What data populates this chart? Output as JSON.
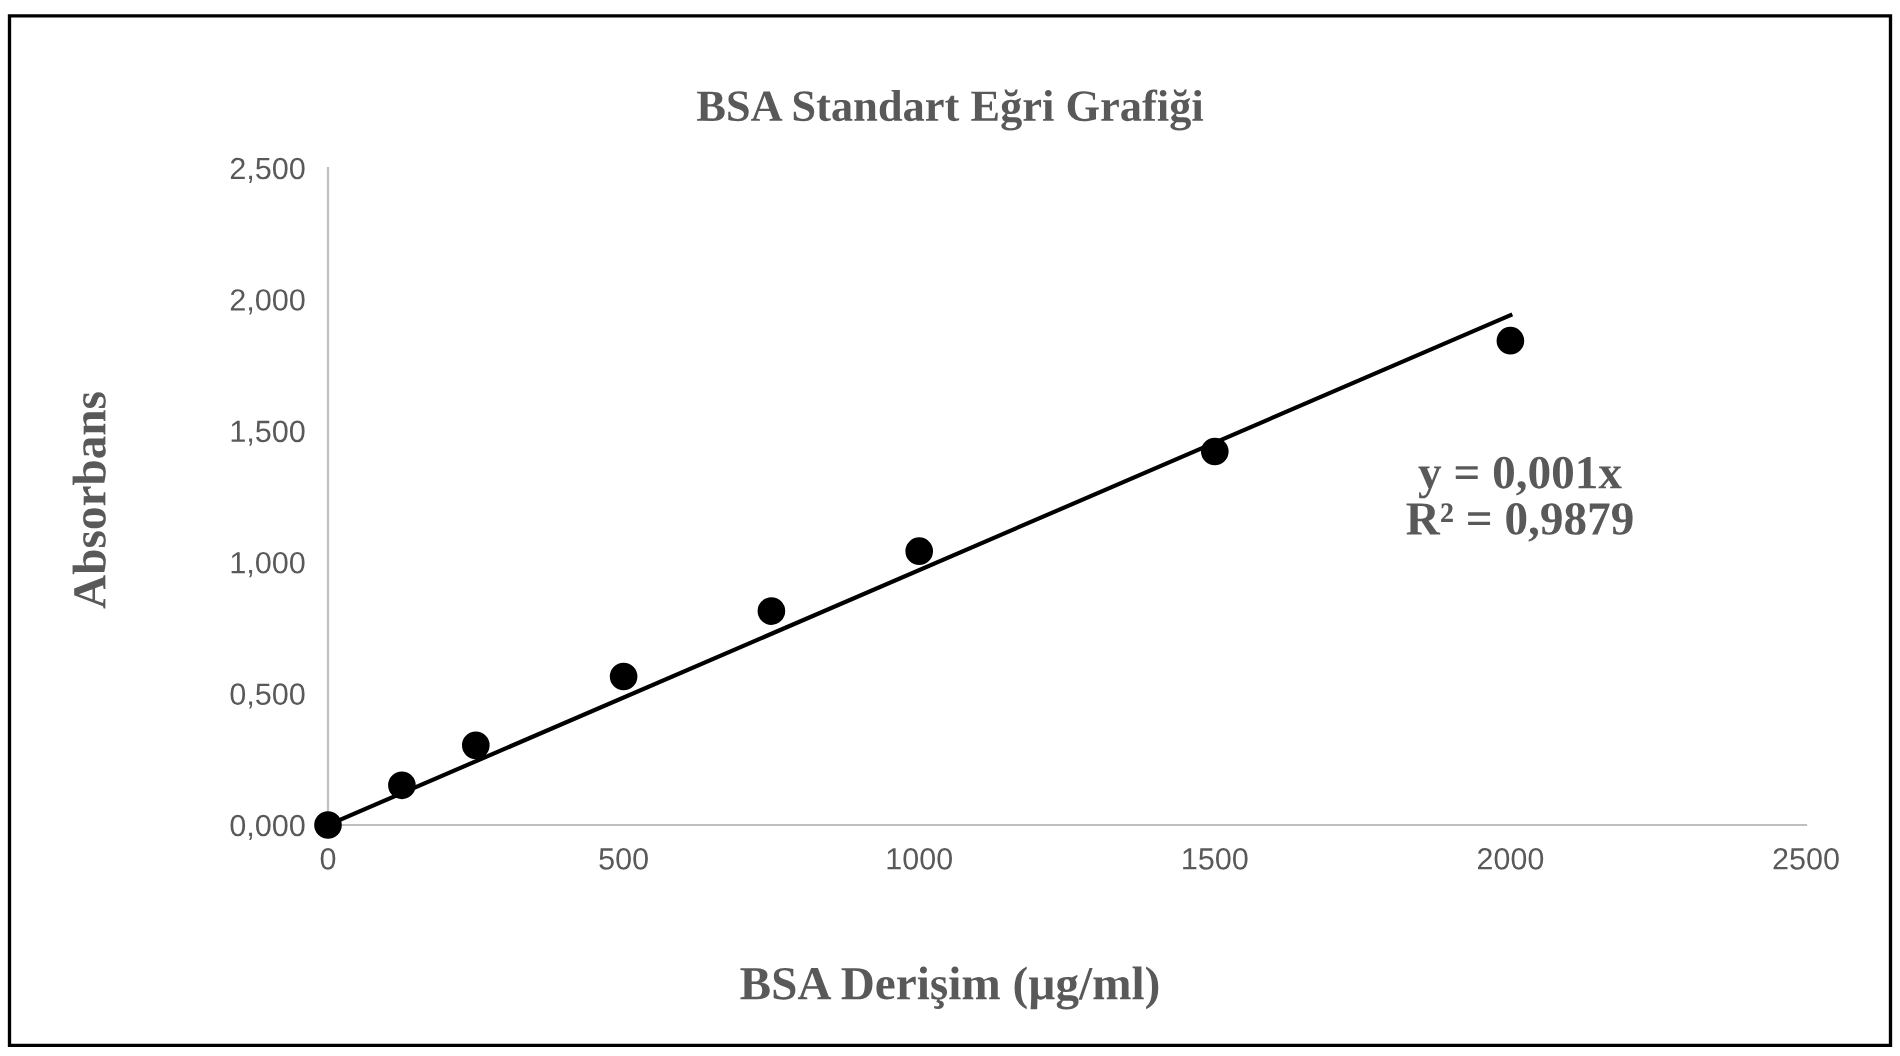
{
  "chart_data": {
    "type": "scatter",
    "title": "BSA Standart Eğri Grafiği",
    "xlabel": "BSA Derişim (µg/ml)",
    "ylabel": "Absorbans",
    "xlim": [
      0,
      2500
    ],
    "xticks": [
      0,
      500,
      1000,
      1500,
      2000,
      2500
    ],
    "ylim": [
      0,
      2.5
    ],
    "yticks": [
      {
        "value": 0,
        "label": "0,000"
      },
      {
        "value": 0.5,
        "label": "0,500"
      },
      {
        "value": 1,
        "label": "1,000"
      },
      {
        "value": 1.5,
        "label": "1,500"
      },
      {
        "value": 2,
        "label": "2,000"
      },
      {
        "value": 2.5,
        "label": "2,500"
      }
    ],
    "grid": false,
    "legend": false,
    "marker": "circle",
    "series": [
      {
        "color": "#000000",
        "x": [
          0,
          125,
          250,
          500,
          750,
          1000,
          1500,
          2000
        ],
        "values": [
          0,
          0.151,
          0.303,
          0.565,
          0.814,
          1.042,
          1.421,
          1.843
        ]
      },
      {
        "type": "line",
        "color": "#000000",
        "x": [
          0,
          2000
        ],
        "values": [
          0,
          1.94
        ],
        "line_style": "solid",
        "marker": "none"
      }
    ],
    "annotations": [
      "y = 0,001x\nR² = 0,9879"
    ]
  }
}
